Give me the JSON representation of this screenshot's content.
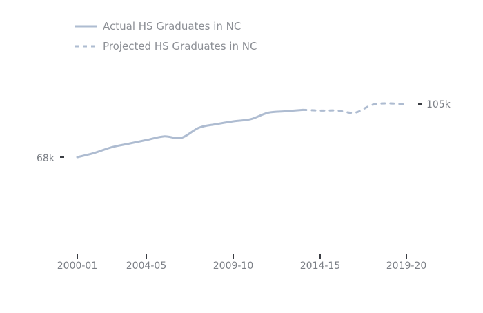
{
  "chart_data": {
    "type": "line",
    "title": "",
    "xlabel": "",
    "ylabel": "",
    "x_tick_labels": [
      "2000-01",
      "2004-05",
      "2009-10",
      "2014-15",
      "2019-20"
    ],
    "y_labels": {
      "start": "68k",
      "end": "105k"
    },
    "series": [
      {
        "name": "Actual HS Graduates in NC",
        "style": "solid",
        "color": "#aebcd1",
        "x": [
          "2000-01",
          "2001-02",
          "2002-03",
          "2003-04",
          "2004-05",
          "2005-06",
          "2006-07",
          "2007-08",
          "2008-09",
          "2009-10",
          "2010-11",
          "2011-12",
          "2012-13",
          "2013-14"
        ],
        "values": [
          68,
          71,
          75,
          77.5,
          80,
          82.5,
          81.5,
          88.5,
          91,
          93,
          94.5,
          99,
          100,
          101
        ]
      },
      {
        "name": "Projected HS Graduates in NC",
        "style": "dashed",
        "color": "#aebcd1",
        "x": [
          "2013-14",
          "2014-15",
          "2015-16",
          "2016-17",
          "2017-18",
          "2018-19",
          "2019-20"
        ],
        "values": [
          101,
          100.5,
          100.5,
          99,
          104.5,
          105.5,
          104.5
        ]
      }
    ],
    "grid": false,
    "legend_position": "top-left"
  }
}
